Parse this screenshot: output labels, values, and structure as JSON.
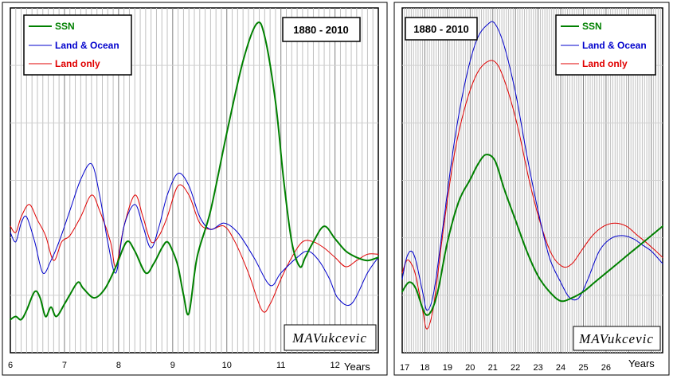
{
  "chart_data": [
    {
      "type": "line",
      "title": "1880 - 2010",
      "xlabel": "Years",
      "ylabel": "",
      "xlim": [
        6,
        12.8
      ],
      "ylim": [
        0,
        1
      ],
      "x_ticks": [
        6,
        7,
        8,
        9,
        10,
        11,
        12
      ],
      "grid": "vertical",
      "legend": "top-left",
      "signature": "MAVukcevic",
      "series": [
        {
          "name": "SSN",
          "color": "#008000",
          "points": [
            [
              6.0,
              0.05
            ],
            [
              6.1,
              0.06
            ],
            [
              6.2,
              0.05
            ],
            [
              6.3,
              0.08
            ],
            [
              6.45,
              0.14
            ],
            [
              6.55,
              0.12
            ],
            [
              6.65,
              0.06
            ],
            [
              6.75,
              0.09
            ],
            [
              6.85,
              0.06
            ],
            [
              7.0,
              0.1
            ],
            [
              7.1,
              0.13
            ],
            [
              7.25,
              0.17
            ],
            [
              7.35,
              0.15
            ],
            [
              7.55,
              0.12
            ],
            [
              7.75,
              0.15
            ],
            [
              7.95,
              0.22
            ],
            [
              8.15,
              0.3
            ],
            [
              8.3,
              0.27
            ],
            [
              8.5,
              0.2
            ],
            [
              8.65,
              0.23
            ],
            [
              8.8,
              0.28
            ],
            [
              8.9,
              0.3
            ],
            [
              9.0,
              0.27
            ],
            [
              9.1,
              0.22
            ],
            [
              9.2,
              0.13
            ],
            [
              9.3,
              0.07
            ],
            [
              9.45,
              0.25
            ],
            [
              9.7,
              0.4
            ],
            [
              10.0,
              0.65
            ],
            [
              10.3,
              0.88
            ],
            [
              10.55,
              1.0
            ],
            [
              10.7,
              0.96
            ],
            [
              10.9,
              0.75
            ],
            [
              11.05,
              0.5
            ],
            [
              11.2,
              0.3
            ],
            [
              11.35,
              0.22
            ],
            [
              11.45,
              0.25
            ],
            [
              11.6,
              0.3
            ],
            [
              11.8,
              0.35
            ],
            [
              12.0,
              0.31
            ],
            [
              12.2,
              0.27
            ],
            [
              12.4,
              0.25
            ],
            [
              12.6,
              0.24
            ],
            [
              12.8,
              0.25
            ]
          ]
        },
        {
          "name": "Land & Ocean",
          "color": "#0000cc",
          "points": [
            [
              6.0,
              0.33
            ],
            [
              6.1,
              0.3
            ],
            [
              6.2,
              0.36
            ],
            [
              6.3,
              0.38
            ],
            [
              6.45,
              0.3
            ],
            [
              6.6,
              0.2
            ],
            [
              6.75,
              0.24
            ],
            [
              6.9,
              0.3
            ],
            [
              7.1,
              0.4
            ],
            [
              7.3,
              0.5
            ],
            [
              7.5,
              0.55
            ],
            [
              7.65,
              0.45
            ],
            [
              7.8,
              0.3
            ],
            [
              7.95,
              0.2
            ],
            [
              8.1,
              0.35
            ],
            [
              8.3,
              0.42
            ],
            [
              8.45,
              0.35
            ],
            [
              8.6,
              0.28
            ],
            [
              8.75,
              0.35
            ],
            [
              8.9,
              0.45
            ],
            [
              9.1,
              0.52
            ],
            [
              9.3,
              0.48
            ],
            [
              9.5,
              0.38
            ],
            [
              9.7,
              0.34
            ],
            [
              9.95,
              0.36
            ],
            [
              10.2,
              0.33
            ],
            [
              10.5,
              0.25
            ],
            [
              10.8,
              0.16
            ],
            [
              11.0,
              0.2
            ],
            [
              11.3,
              0.25
            ],
            [
              11.5,
              0.27
            ],
            [
              11.7,
              0.24
            ],
            [
              11.9,
              0.18
            ],
            [
              12.05,
              0.12
            ],
            [
              12.3,
              0.1
            ],
            [
              12.6,
              0.2
            ],
            [
              12.8,
              0.25
            ]
          ]
        },
        {
          "name": "Land only",
          "color": "#e00000",
          "points": [
            [
              6.0,
              0.35
            ],
            [
              6.1,
              0.33
            ],
            [
              6.2,
              0.38
            ],
            [
              6.35,
              0.42
            ],
            [
              6.5,
              0.37
            ],
            [
              6.65,
              0.32
            ],
            [
              6.8,
              0.24
            ],
            [
              6.95,
              0.3
            ],
            [
              7.1,
              0.32
            ],
            [
              7.3,
              0.38
            ],
            [
              7.5,
              0.45
            ],
            [
              7.65,
              0.4
            ],
            [
              7.85,
              0.3
            ],
            [
              7.95,
              0.22
            ],
            [
              8.1,
              0.35
            ],
            [
              8.3,
              0.45
            ],
            [
              8.45,
              0.38
            ],
            [
              8.6,
              0.3
            ],
            [
              8.75,
              0.32
            ],
            [
              8.9,
              0.38
            ],
            [
              9.1,
              0.48
            ],
            [
              9.3,
              0.45
            ],
            [
              9.5,
              0.36
            ],
            [
              9.7,
              0.34
            ],
            [
              9.95,
              0.35
            ],
            [
              10.15,
              0.3
            ],
            [
              10.4,
              0.2
            ],
            [
              10.65,
              0.08
            ],
            [
              10.8,
              0.1
            ],
            [
              11.0,
              0.18
            ],
            [
              11.2,
              0.25
            ],
            [
              11.4,
              0.3
            ],
            [
              11.6,
              0.3
            ],
            [
              11.8,
              0.28
            ],
            [
              12.0,
              0.25
            ],
            [
              12.2,
              0.22
            ],
            [
              12.4,
              0.24
            ],
            [
              12.6,
              0.26
            ],
            [
              12.8,
              0.26
            ]
          ]
        }
      ]
    },
    {
      "type": "line",
      "title": "1880 - 2010",
      "xlabel": "Years",
      "ylabel": "",
      "xlim": [
        17,
        28.5
      ],
      "ylim": [
        0,
        1
      ],
      "x_ticks": [
        17,
        18,
        19,
        20,
        21,
        22,
        23,
        24,
        25,
        26
      ],
      "grid": "vertical",
      "legend": "top-right",
      "signature": "MAVukcevic",
      "series": [
        {
          "name": "SSN",
          "color": "#008000",
          "points": [
            [
              17.0,
              0.14
            ],
            [
              17.3,
              0.17
            ],
            [
              17.6,
              0.15
            ],
            [
              18.0,
              0.07
            ],
            [
              18.3,
              0.08
            ],
            [
              18.6,
              0.15
            ],
            [
              19.0,
              0.3
            ],
            [
              19.5,
              0.43
            ],
            [
              20.0,
              0.5
            ],
            [
              20.35,
              0.55
            ],
            [
              20.7,
              0.58
            ],
            [
              21.1,
              0.56
            ],
            [
              21.5,
              0.47
            ],
            [
              22.0,
              0.37
            ],
            [
              22.5,
              0.27
            ],
            [
              23.0,
              0.19
            ],
            [
              23.5,
              0.14
            ],
            [
              24.0,
              0.11
            ],
            [
              24.5,
              0.12
            ],
            [
              25.0,
              0.14
            ],
            [
              25.5,
              0.17
            ],
            [
              26.0,
              0.2
            ],
            [
              26.5,
              0.23
            ],
            [
              27.0,
              0.26
            ],
            [
              27.5,
              0.29
            ],
            [
              28.0,
              0.32
            ],
            [
              28.5,
              0.35
            ]
          ]
        },
        {
          "name": "Land & Ocean",
          "color": "#0000cc",
          "points": [
            [
              17.0,
              0.18
            ],
            [
              17.2,
              0.25
            ],
            [
              17.4,
              0.27
            ],
            [
              17.6,
              0.24
            ],
            [
              17.9,
              0.14
            ],
            [
              18.1,
              0.08
            ],
            [
              18.4,
              0.14
            ],
            [
              18.8,
              0.35
            ],
            [
              19.3,
              0.62
            ],
            [
              19.8,
              0.82
            ],
            [
              20.3,
              0.95
            ],
            [
              20.8,
              1.0
            ],
            [
              21.1,
              1.0
            ],
            [
              21.5,
              0.93
            ],
            [
              22.0,
              0.78
            ],
            [
              22.5,
              0.58
            ],
            [
              23.0,
              0.4
            ],
            [
              23.5,
              0.25
            ],
            [
              24.0,
              0.17
            ],
            [
              24.4,
              0.12
            ],
            [
              24.8,
              0.12
            ],
            [
              25.2,
              0.18
            ],
            [
              25.7,
              0.27
            ],
            [
              26.2,
              0.31
            ],
            [
              26.7,
              0.32
            ],
            [
              27.2,
              0.31
            ],
            [
              27.6,
              0.29
            ],
            [
              28.0,
              0.27
            ],
            [
              28.5,
              0.23
            ]
          ]
        },
        {
          "name": "Land only",
          "color": "#e00000",
          "points": [
            [
              17.0,
              0.2
            ],
            [
              17.2,
              0.24
            ],
            [
              17.4,
              0.23
            ],
            [
              17.6,
              0.19
            ],
            [
              17.9,
              0.08
            ],
            [
              18.1,
              0.02
            ],
            [
              18.4,
              0.1
            ],
            [
              18.8,
              0.33
            ],
            [
              19.3,
              0.58
            ],
            [
              19.8,
              0.74
            ],
            [
              20.3,
              0.84
            ],
            [
              20.8,
              0.88
            ],
            [
              21.2,
              0.87
            ],
            [
              21.6,
              0.8
            ],
            [
              22.1,
              0.67
            ],
            [
              22.6,
              0.5
            ],
            [
              23.1,
              0.36
            ],
            [
              23.6,
              0.26
            ],
            [
              24.1,
              0.22
            ],
            [
              24.5,
              0.23
            ],
            [
              24.9,
              0.27
            ],
            [
              25.4,
              0.32
            ],
            [
              25.9,
              0.35
            ],
            [
              26.4,
              0.36
            ],
            [
              26.9,
              0.35
            ],
            [
              27.4,
              0.32
            ],
            [
              27.9,
              0.29
            ],
            [
              28.5,
              0.25
            ]
          ]
        }
      ]
    }
  ]
}
